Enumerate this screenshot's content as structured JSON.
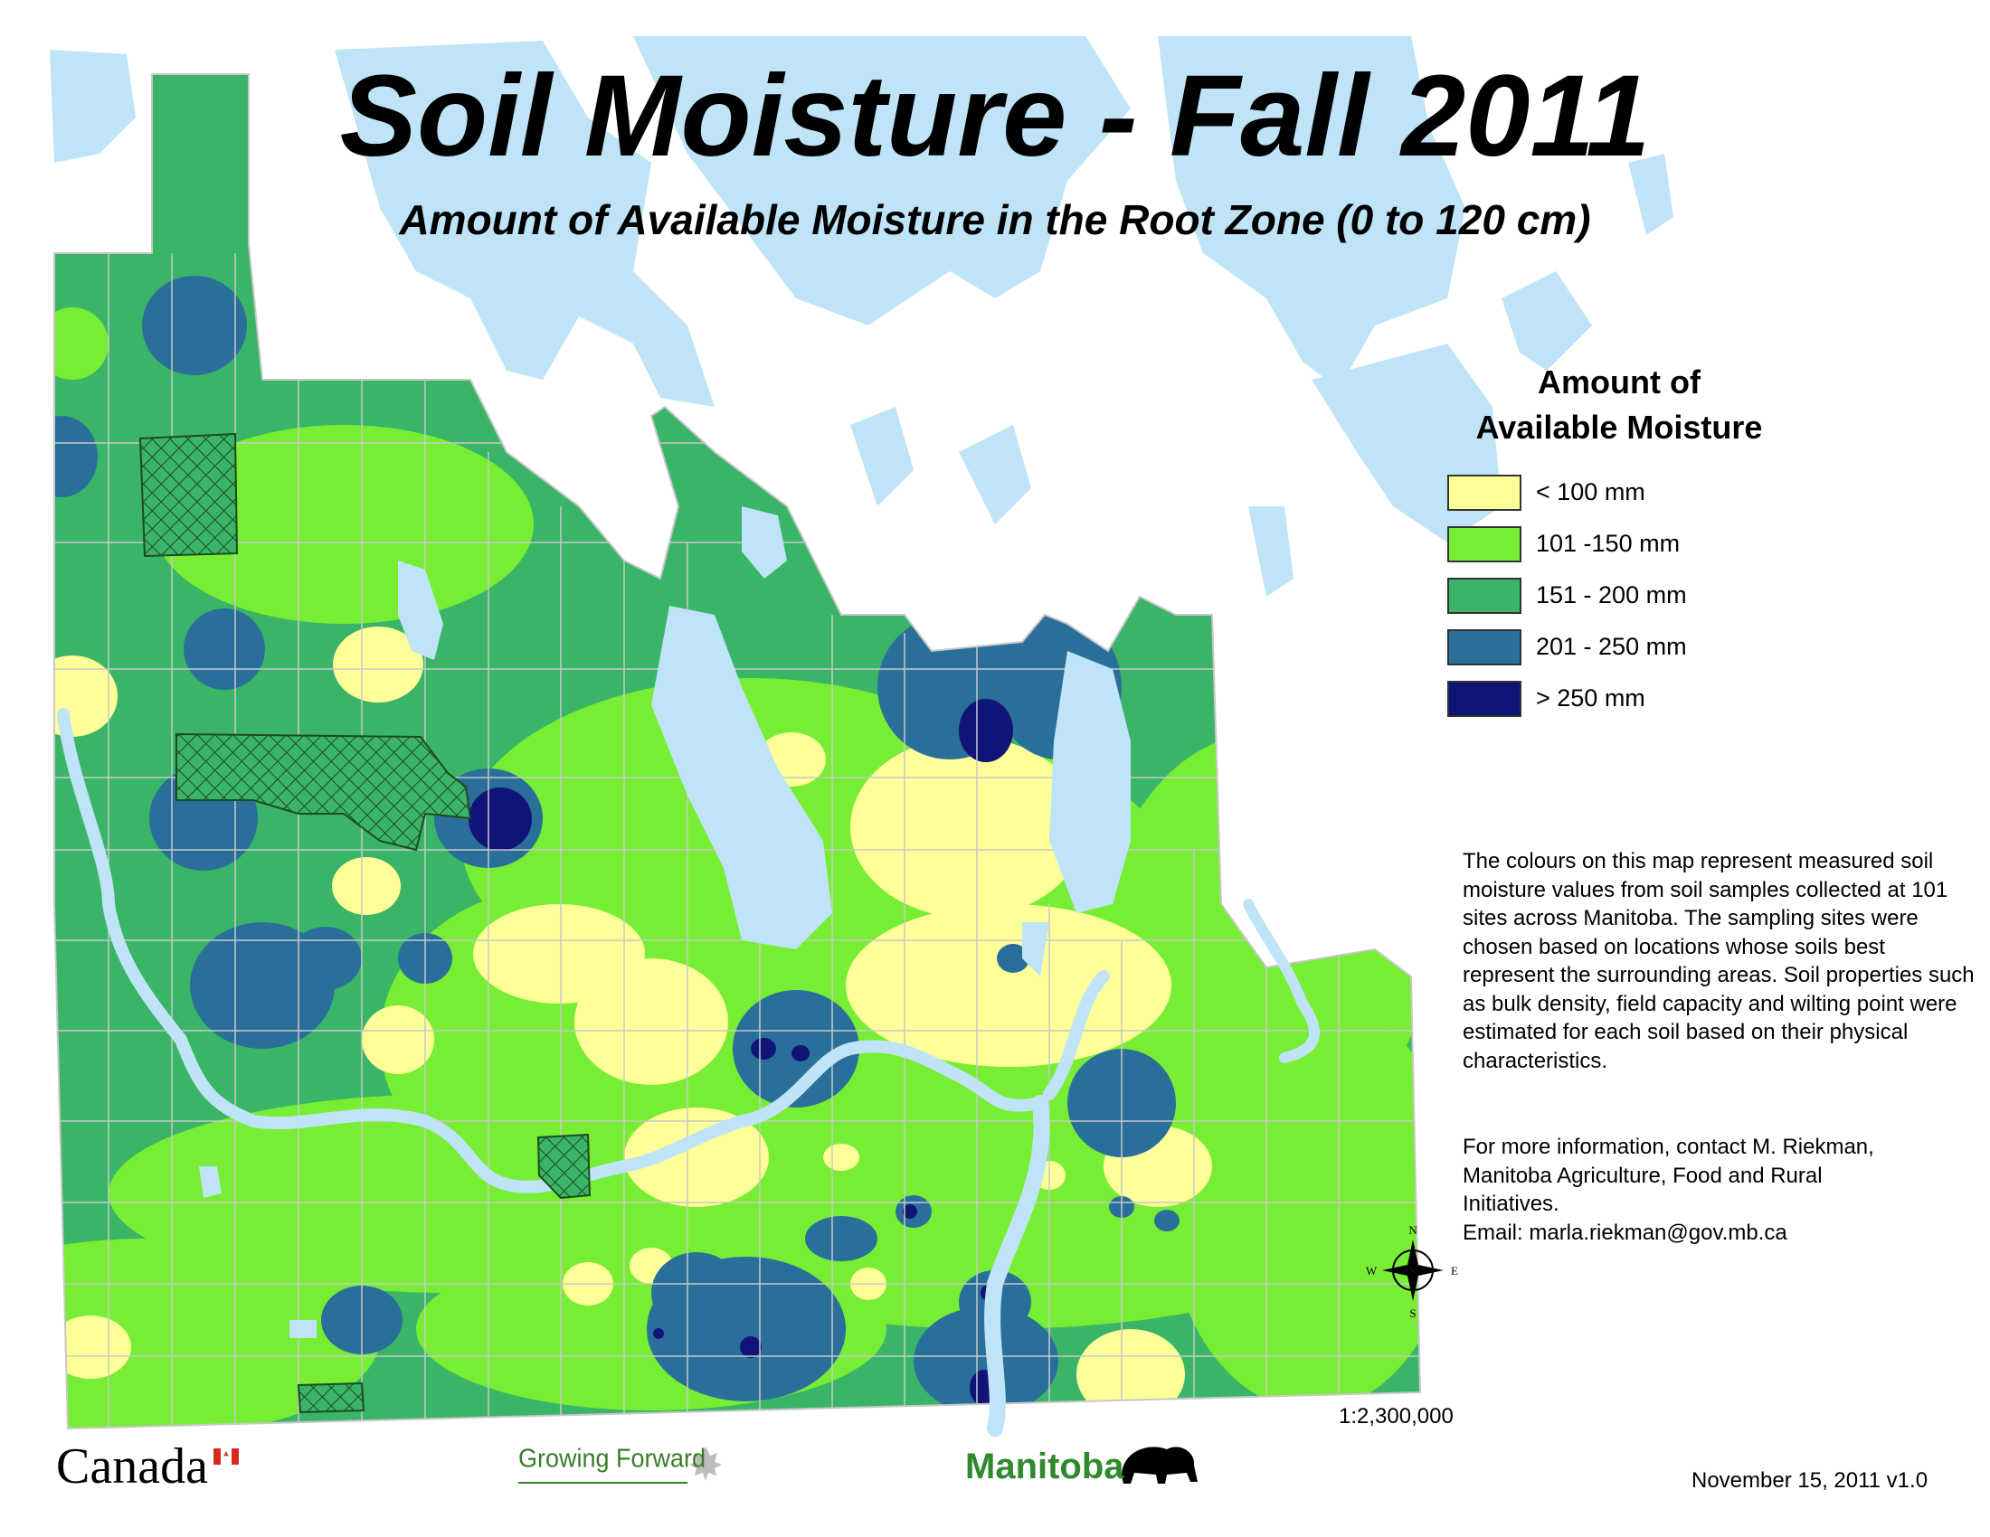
{
  "title": "Soil Moisture - Fall 2011",
  "subtitle": "Amount of Available Moisture in the Root Zone (0 to 120 cm)",
  "legend": {
    "title_line1": "Amount of",
    "title_line2": "Available Moisture",
    "items": [
      {
        "label": "< 100 mm",
        "color": "#ffff99"
      },
      {
        "label": "101 -150 mm",
        "color": "#77ee33"
      },
      {
        "label": "151 - 200 mm",
        "color": "#3ab567"
      },
      {
        "label": "201 - 250 mm",
        "color": "#2a6f9a"
      },
      {
        "label": "> 250 mm",
        "color": "#111477"
      }
    ]
  },
  "description": "The colours on this map represent measured soil moisture values from soil samples collected at 101 sites across Manitoba.  The sampling sites were chosen based on locations whose soils best represent the surrounding areas.  Soil properties such as bulk density, field capacity and wilting point were estimated for each soil based on their physical characteristics.",
  "contact": {
    "line1": "For more information, contact M. Riekman,",
    "line2": "Manitoba Agriculture, Food and Rural",
    "line3": "Initiatives.",
    "email": "Email: marla.riekman@gov.mb.ca"
  },
  "scale": "1:2,300,000",
  "date": "November 15, 2011 v1.0",
  "compass": {
    "n": "N",
    "s": "S",
    "e": "E",
    "w": "W"
  },
  "logos": {
    "canada": "Canada",
    "growing_forward": "Growing Forward",
    "manitoba": "Manitoba"
  },
  "colors": {
    "water": "#bfe4f7",
    "boundary": "#c8c8c8",
    "park_hatch": "#1d6b2a"
  }
}
